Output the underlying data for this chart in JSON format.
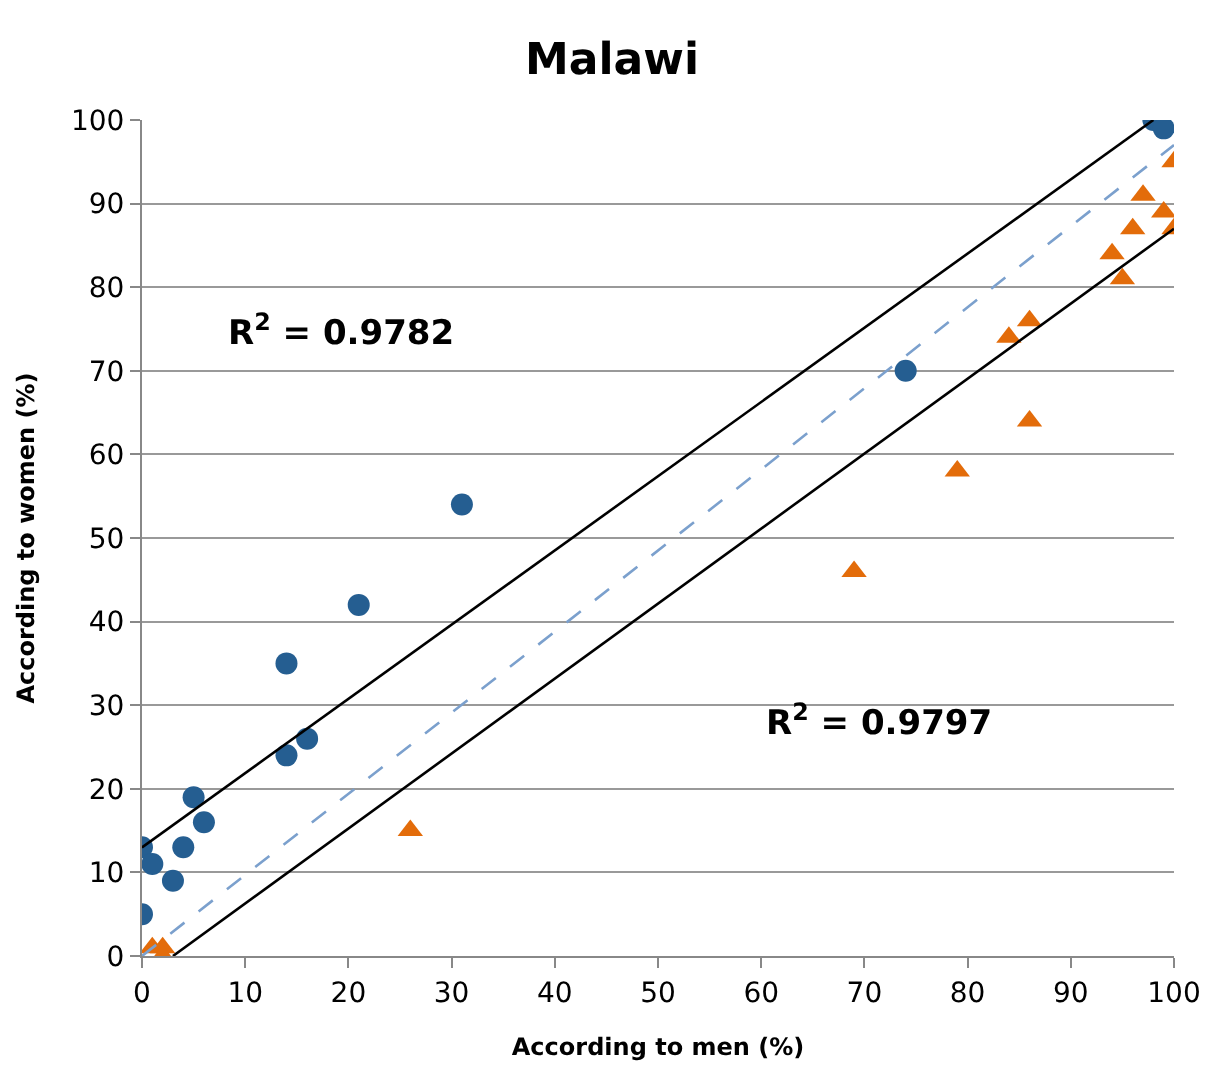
{
  "chart_data": {
    "type": "scatter",
    "title": "Malawi",
    "xlabel": "According to men (%)",
    "ylabel": "According to women (%)",
    "xlim": [
      0,
      100
    ],
    "xticks": [
      0,
      10,
      20,
      30,
      40,
      50,
      60,
      70,
      80,
      90,
      100
    ],
    "ylim": [
      0,
      100
    ],
    "yticks": [
      0,
      10,
      20,
      30,
      40,
      50,
      60,
      70,
      80,
      90,
      100
    ],
    "grid": "y",
    "legend": false,
    "series": [
      {
        "marker": "circle",
        "color": "#255e91",
        "x": [
          0,
          0,
          1,
          3,
          4,
          5,
          6,
          14,
          14,
          16,
          21,
          31,
          74,
          98,
          99
        ],
        "values": [
          13,
          5,
          11,
          9,
          13,
          19,
          16,
          35,
          24,
          26,
          42,
          54,
          70,
          100,
          99
        ]
      },
      {
        "marker": "triangle",
        "color": "#e36c0a",
        "x": [
          1,
          2,
          2,
          26,
          69,
          79,
          84,
          86,
          86,
          94,
          95,
          96,
          97,
          99,
          100,
          100
        ],
        "values": [
          1,
          1,
          0,
          15,
          46,
          58,
          74,
          76,
          64,
          84,
          81,
          87,
          91,
          89,
          87,
          95
        ]
      },
      {
        "type": "line",
        "line_style": "solid",
        "color": "#000000",
        "x": [
          0,
          98
        ],
        "values": [
          13,
          100
        ]
      },
      {
        "type": "line",
        "line_style": "solid",
        "color": "#000000",
        "x": [
          3,
          100
        ],
        "values": [
          0,
          87
        ]
      },
      {
        "type": "line",
        "line_style": "dashed",
        "color": "#7ba0cd",
        "x": [
          0,
          100
        ],
        "values": [
          0,
          97
        ]
      }
    ],
    "annotations": [
      "R$^{2}$ = 0.9782",
      "R$^{2}$ = 0.9797"
    ]
  }
}
